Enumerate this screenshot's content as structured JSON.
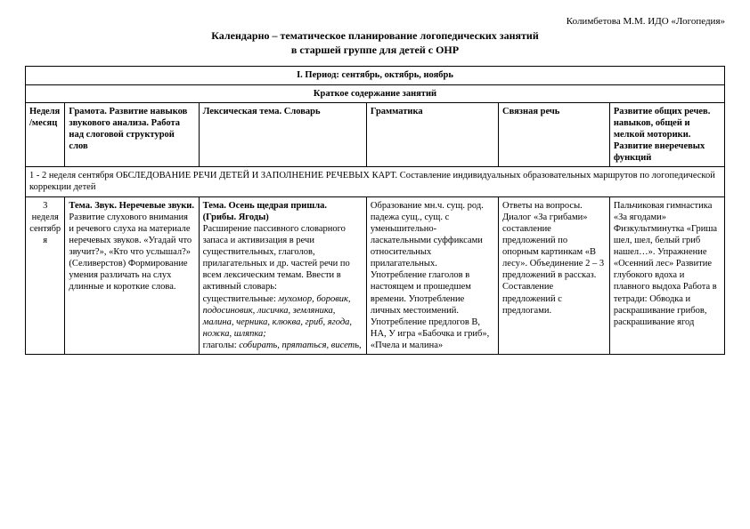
{
  "author_line": "Колимбетова М.М. ИДО «Логопедия»",
  "title_line1": "Календарно – тематическое планирование логопедических занятий",
  "title_line2": "в старшей группе для детей с ОНР",
  "period_header": "I.   Период: сентябрь, октябрь, ноябрь",
  "subheader": "Краткое содержание занятий",
  "headers": {
    "week": "Неделя/месяц",
    "col1": "Грамота. Развитие навыков звукового анализа. Работа над слоговой структурой слов",
    "col2": "Лексическая тема. Словарь",
    "col3": "Грамматика",
    "col4": "Связная речь",
    "col5": "Развитие общих речев. навыков, общей и мелкой моторики. Развитие внеречевых функций"
  },
  "row_span": "1 - 2 неделя сентября ОБСЛЕДОВАНИЕ РЕЧИ ДЕТЕЙ И ЗАПОЛНЕНИЕ РЕЧЕВЫХ КАРТ. Составление индивидуальных образовательных маршрутов по логопедической коррекции детей",
  "row3": {
    "week": "3 неделя сентября",
    "c1_bold": "Тема. Звук. Неречевые звуки.",
    "c1_body": "Развитие слухового внимания и речевого слуха на материале неречевых звуков.\n«Угадай что звучит?», «Кто что услышал?» (Селиверстов)\nФормирование умения различать на слух длинные и короткие слова.",
    "c2_bold": "Тема. Осень щедрая пришла. (Грибы. Ягоды)",
    "c2_body": "Расширение пассивного словарного запаса и активизация в речи существительных, глаголов, прилагательных и др. частей речи по всем лексическим темам.\nВвести в активный словарь:",
    "c2_sushch_label": "существительные:",
    "c2_sushch_italic": "мухомор, боровик, подосиновик, лисичка, земляника, малина, черника, клюква, гриб, ягода, ножка, шляпка;",
    "c2_glag_label": "глаголы:",
    "c2_glag_italic": "собирать, прятаться, висеть,",
    "c3": "Образование мн.ч. сущ. род. падежа сущ., сущ. с уменьшительно-ласкательными суффиксами относительных прилагательных.\nУпотребление глаголов в настоящем и прошедшем времени. Употребление личных местоимений. Употребление предлогов В, НА, У игра «Бабочка и гриб», «Пчела и малина»",
    "c4": "Ответы на вопросы. Диалог «За грибами» составление предложений по опорным картинкам «В лесу». Объединение 2 – 3 предложений в рассказ. Составление предложений с предлогами.",
    "c5": "Пальчиковая гимнастика «За ягодами» Физкультминутка «Гриша шел, шел, белый гриб нашел…».\nУпражнение «Осенний лес» Развитие глубокого вдоха и плавного выдоха\nРабота в тетради:\n Обводка и раскрашивание грибов, раскрашивание ягод"
  }
}
